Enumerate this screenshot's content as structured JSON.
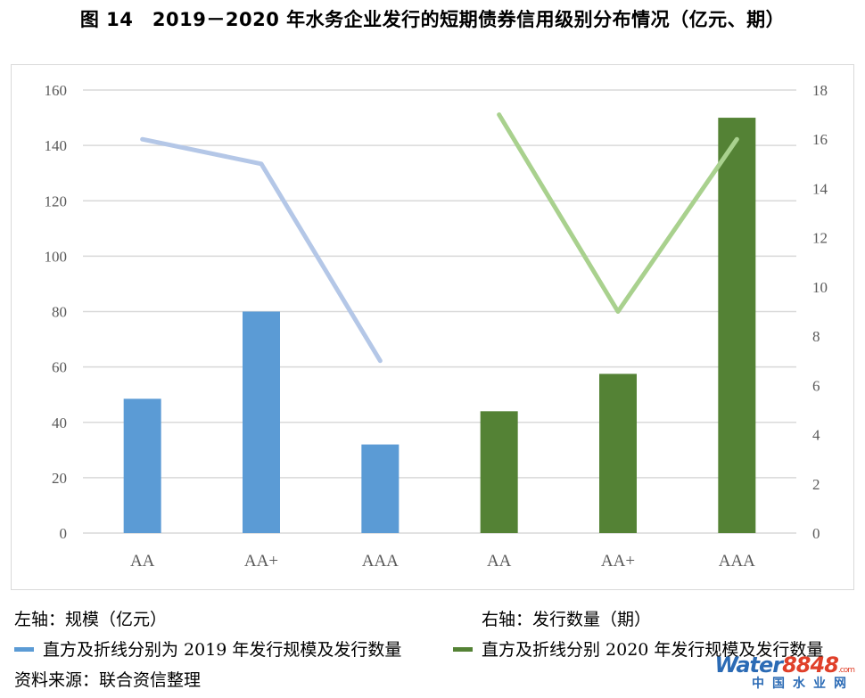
{
  "title": "图 14　2019－2020 年水务企业发行的短期债券信用级别分布情况（亿元、期）",
  "notes": {
    "left_axis": "左轴：规模（亿元）",
    "right_axis": "右轴：发行数量（期）",
    "legend_2019": "直方及折线分别为 2019 年发行规模及发行数量",
    "legend_2020": "直方及折线分别 2020 年发行规模及发行数量",
    "source": "资料来源：联合资信整理"
  },
  "logo": {
    "word": "Water",
    "number": "8848",
    "suffix": ".com",
    "sub": "中国水业网"
  },
  "colors": {
    "bar_2019": "#5b9bd5",
    "line_2019": "#b4c7e7",
    "bar_2020": "#548235",
    "line_2020": "#a9d18e",
    "grid": "#d9d9d9",
    "tick_text": "#595959"
  },
  "chart_data": {
    "type": "bar",
    "categories": [
      "AA",
      "AA+",
      "AAA",
      "AA",
      "AA+",
      "AAA"
    ],
    "series": [
      {
        "kind": "bar",
        "axis": "left",
        "group": "2019",
        "values": [
          48.5,
          80,
          32,
          null,
          null,
          null
        ]
      },
      {
        "kind": "bar",
        "axis": "left",
        "group": "2020",
        "values": [
          null,
          null,
          null,
          44,
          57.5,
          150
        ]
      },
      {
        "kind": "line",
        "axis": "right",
        "group": "2019",
        "values": [
          16,
          15,
          7,
          null,
          null,
          null
        ]
      },
      {
        "kind": "line",
        "axis": "right",
        "group": "2020",
        "values": [
          null,
          null,
          null,
          17,
          9,
          16
        ]
      }
    ],
    "y_left": {
      "ylim": [
        0,
        160
      ],
      "ticks": [
        0,
        20,
        40,
        60,
        80,
        100,
        120,
        140,
        160
      ]
    },
    "y_right": {
      "ylim": [
        0,
        18
      ],
      "ticks": [
        0,
        2,
        4,
        6,
        8,
        10,
        12,
        14,
        16,
        18
      ]
    },
    "grid": true
  }
}
